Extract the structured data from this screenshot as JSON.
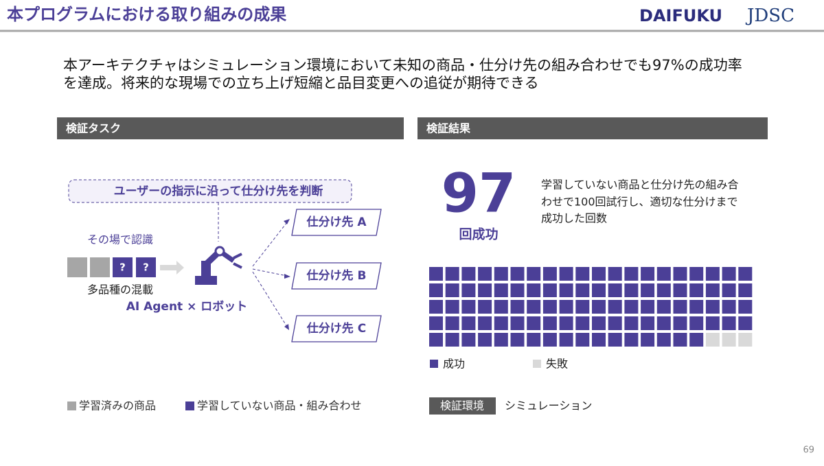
{
  "header": {
    "title": "本プログラムにおける取り組みの成果",
    "logos": [
      "DAIFUKU",
      "JDSC"
    ]
  },
  "summary": [
    "本アーキテクチャはシミュレーション環境において未知の商品・仕分け先の組み合わせでも97%の成功率",
    "を達成。将来的な現場での立ち上げ短縮と品目変更への追従が期待できる"
  ],
  "task": {
    "heading": "検証タスク",
    "instruction": "ユーザーの指示に沿って仕分け先を判断",
    "recognize": "その場で認識",
    "unknown_marks": [
      "?",
      "?"
    ],
    "mixed": "多品種の混載",
    "agent": "AI Agent × ロボット",
    "destinations": [
      "仕分け先 A",
      "仕分け先 B",
      "仕分け先 C"
    ],
    "legend": [
      "学習済みの商品",
      "学習していない商品・組み合わせ"
    ]
  },
  "result": {
    "heading": "検証結果",
    "count": 97,
    "count_label": "回成功",
    "description": [
      "学習していない商品と仕分け先の組み合",
      "わせで100回試行し、適切な仕分けまで",
      "成功した回数"
    ],
    "env_label": "検証環境",
    "env_value": "シミュレーション"
  },
  "chart_data": {
    "type": "waffle",
    "series": [
      {
        "name": "成功",
        "color": "#4b3f97",
        "value": 97
      },
      {
        "name": "失敗",
        "color": "#d9d9d9",
        "value": 3
      }
    ]
  },
  "page_number": 69
}
